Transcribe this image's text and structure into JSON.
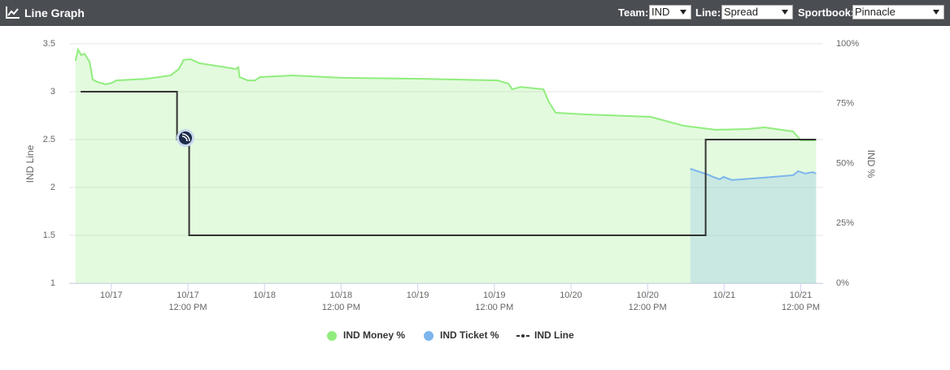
{
  "header": {
    "title": "Line Graph",
    "controls": [
      {
        "label": "Team:",
        "value": "IND"
      },
      {
        "label": "Line:",
        "value": "Spread"
      },
      {
        "label": "Sportbook:",
        "value": "Pinnacle"
      }
    ]
  },
  "chart_data": {
    "type": "line",
    "y_label": "IND Line",
    "y2_label": "IND %",
    "xlim": [
      -6.6,
      111.5
    ],
    "xticks": [
      {
        "value": 0,
        "label": "10/17"
      },
      {
        "value": 12,
        "label": "10/17\n12:00 PM"
      },
      {
        "value": 24,
        "label": "10/18"
      },
      {
        "value": 36,
        "label": "10/18\n12:00 PM"
      },
      {
        "value": 48,
        "label": "10/19"
      },
      {
        "value": 60,
        "label": "10/19\n12:00 PM"
      },
      {
        "value": 72,
        "label": "10/20"
      },
      {
        "value": 84,
        "label": "10/20\n12:00 PM"
      },
      {
        "value": 96,
        "label": "10/21"
      },
      {
        "value": 108,
        "label": "10/21\n12:00 PM"
      }
    ],
    "ylim": [
      1,
      3.5
    ],
    "yticks": [
      1,
      1.5,
      2,
      2.5,
      3,
      3.5
    ],
    "y2lim": [
      0,
      100
    ],
    "y2ticks": [
      {
        "value": 0,
        "label": "0%"
      },
      {
        "value": 25,
        "label": "25%"
      },
      {
        "value": 50,
        "label": "50%"
      },
      {
        "value": 75,
        "label": "75%"
      },
      {
        "value": 100,
        "label": "100%"
      }
    ],
    "grid": true,
    "series": [
      {
        "name": "IND Money %",
        "type": "area",
        "axis": "y2",
        "color": "#90ed7d",
        "x": [
          -5.6,
          -5.2,
          -4.7,
          -4.2,
          -3.4,
          -2.9,
          -2.2,
          -0.9,
          0.1,
          0.8,
          5.5,
          9.3,
          10.6,
          11.3,
          12.4,
          13.8,
          19.5,
          19.9,
          20.1,
          21.4,
          22.5,
          23.3,
          28.4,
          36.1,
          48.8,
          60.5,
          62.2,
          62.8,
          64.1,
          67.7,
          68.5,
          69.6,
          74.3,
          84.5,
          89.6,
          94.6,
          99.7,
          102.3,
          106.8,
          108.0,
          110.4
        ],
        "values": [
          92.9,
          97.6,
          95.3,
          95.9,
          92.5,
          85.1,
          84.1,
          83.1,
          83.7,
          84.7,
          85.4,
          86.8,
          89.5,
          93.2,
          93.6,
          91.9,
          89.5,
          90.2,
          86.1,
          84.7,
          84.7,
          86.1,
          86.8,
          85.8,
          85.4,
          84.7,
          83.4,
          81.0,
          82.0,
          81.0,
          75.9,
          71.2,
          70.5,
          69.5,
          65.8,
          64.1,
          64.4,
          65.1,
          63.4,
          59.7,
          59.7
        ]
      },
      {
        "name": "IND Ticket %",
        "type": "area",
        "axis": "y2",
        "color": "#7cb5ec",
        "x": [
          90.7,
          93.4,
          94.3,
          95.3,
          95.9,
          97.2,
          102.3,
          106.8,
          107.6,
          108.7,
          109.9,
          110.4
        ],
        "values": [
          47.8,
          45.4,
          44.4,
          43.4,
          44.4,
          43.1,
          44.1,
          45.1,
          46.8,
          45.8,
          46.4,
          45.8
        ]
      },
      {
        "name": "IND Line",
        "type": "line",
        "step": "after",
        "color": "#333333",
        "x": [
          -4.8,
          10.3,
          12.2,
          93.1,
          110.4
        ],
        "values": [
          3,
          2.5,
          1.5,
          2.5,
          2.5
        ]
      }
    ]
  }
}
